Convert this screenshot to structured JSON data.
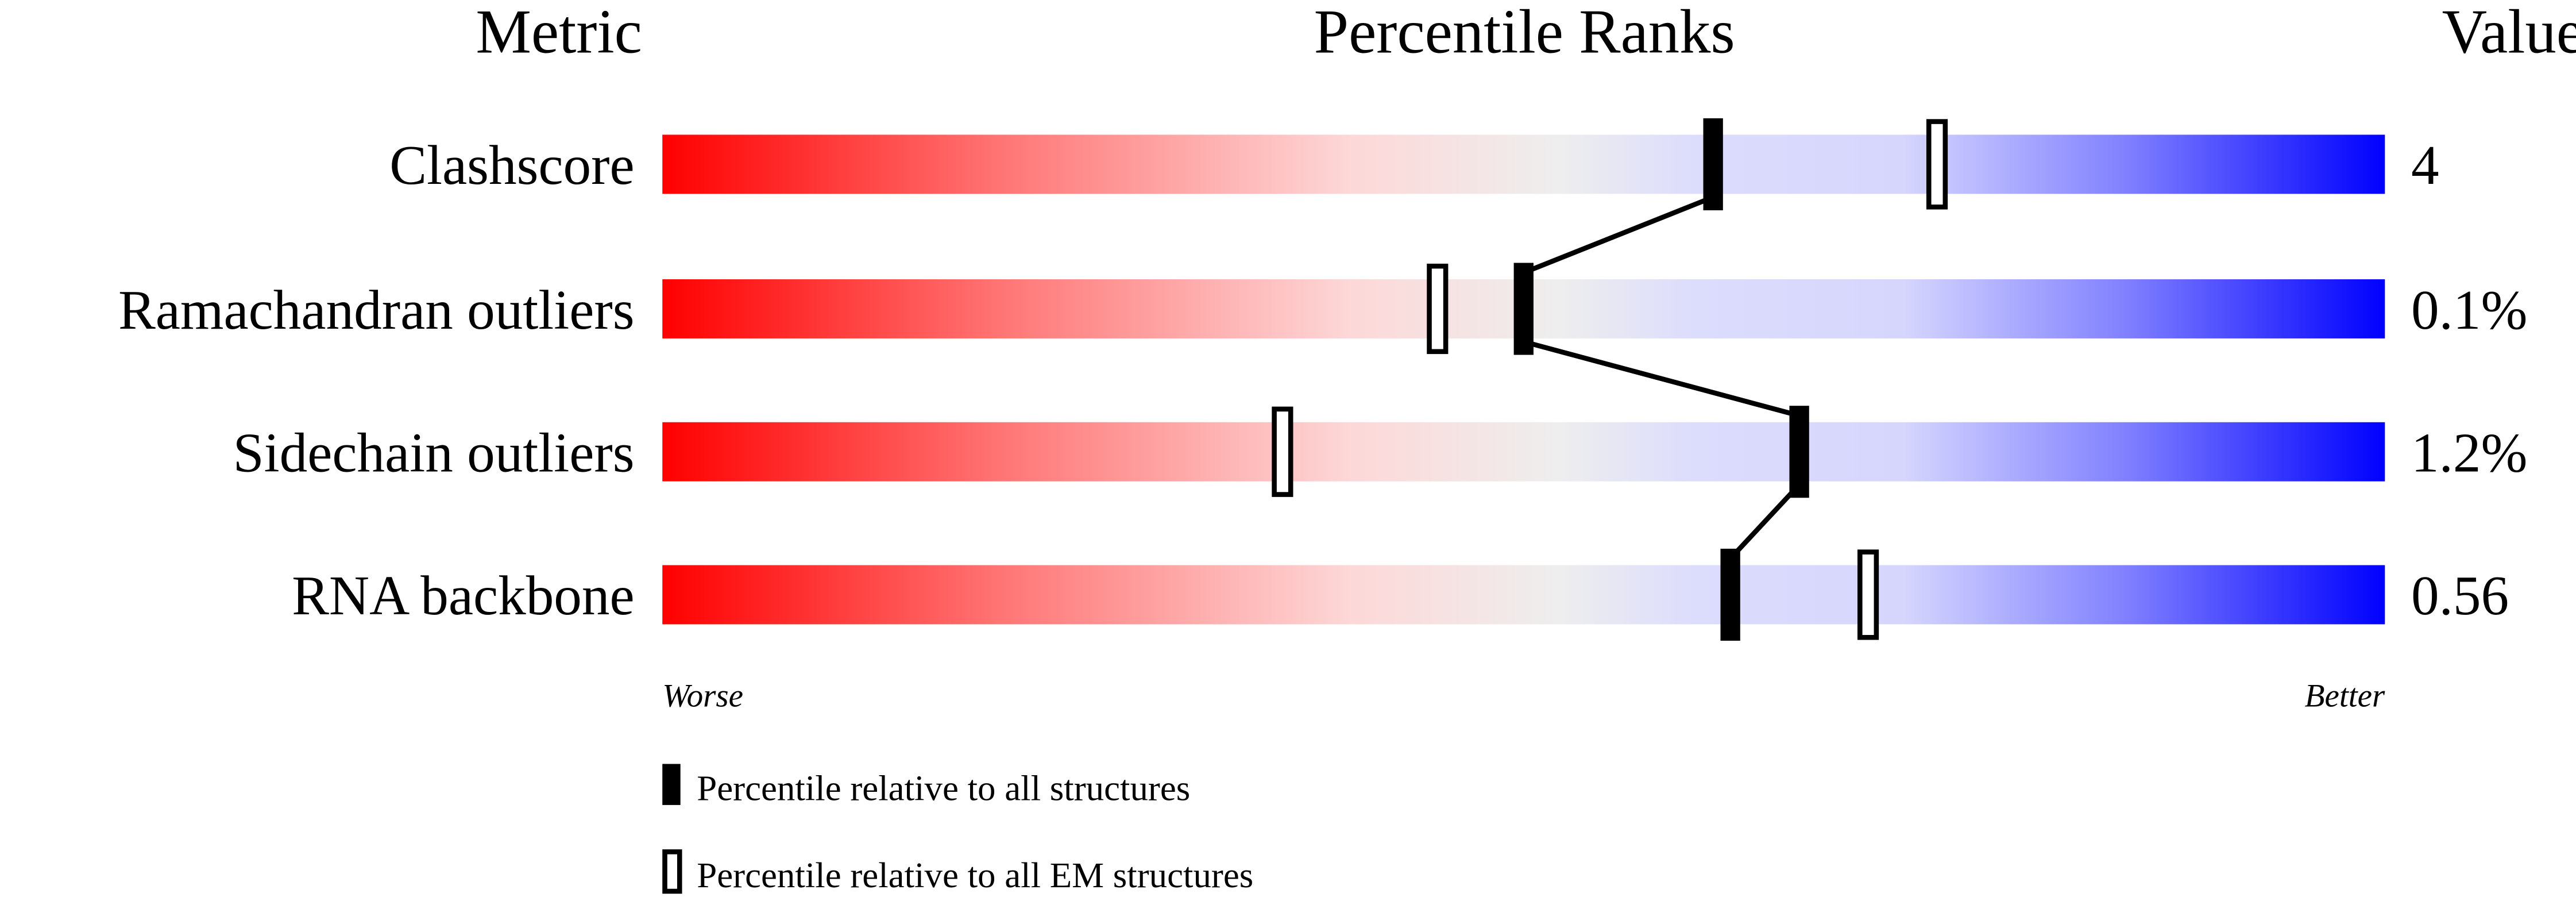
{
  "chart_data": {
    "type": "percentile-slider",
    "headers": {
      "metric": "Metric",
      "ranks": "Percentile Ranks",
      "value": "Value"
    },
    "xlim": [
      0,
      100
    ],
    "axis_labels": {
      "left": "Worse",
      "right": "Better"
    },
    "metrics": [
      {
        "name": "Clashscore",
        "value": "4",
        "percentile_all": 61,
        "percentile_em": 74
      },
      {
        "name": "Ramachandran outliers",
        "value": "0.1%",
        "percentile_all": 50,
        "percentile_em": 45
      },
      {
        "name": "Sidechain outliers",
        "value": "1.2%",
        "percentile_all": 66,
        "percentile_em": 36
      },
      {
        "name": "RNA backbone",
        "value": "0.56",
        "percentile_all": 62,
        "percentile_em": 70
      }
    ],
    "legend": [
      {
        "marker": "filled",
        "label": "Percentile relative to all structures"
      },
      {
        "marker": "hollow",
        "label": "Percentile relative to all EM structures"
      }
    ],
    "colors": {
      "worse": "#ff0000",
      "middle": "#eeeeee",
      "better": "#0000ff"
    }
  }
}
